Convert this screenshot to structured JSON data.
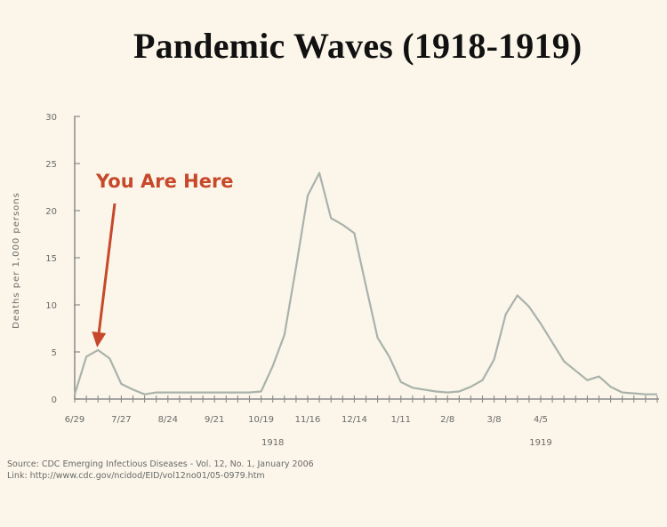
{
  "chart_data": {
    "type": "line",
    "title": "Pandemic Waves (1918-1919)",
    "ylabel": "Deaths per 1,000 persons",
    "xlabel": "",
    "ylim": [
      0,
      30
    ],
    "yticks": [
      0,
      5,
      10,
      15,
      20,
      25,
      30
    ],
    "grid": false,
    "x_tick_labels": [
      "6/29",
      "7/27",
      "8/24",
      "9/21",
      "10/19",
      "11/16",
      "12/14",
      "1/11",
      "2/8",
      "3/8",
      "4/5"
    ],
    "year_labels": [
      {
        "label": "1918",
        "week": 17
      },
      {
        "label": "1919",
        "week": 40
      }
    ],
    "series": [
      {
        "x_weeks": [
          0,
          1,
          2,
          3,
          4,
          5,
          6,
          7,
          8,
          9,
          10,
          11,
          12,
          13,
          14,
          15,
          16,
          17,
          18,
          19,
          20,
          21,
          22,
          23,
          24,
          25,
          26,
          27,
          28,
          29,
          30,
          31,
          32,
          33,
          34,
          35,
          36,
          37,
          38,
          39,
          40,
          41,
          42,
          43,
          44,
          45,
          46,
          47,
          48,
          49,
          50
        ],
        "values": [
          0.5,
          4.5,
          5.2,
          4.3,
          1.6,
          1.0,
          0.5,
          0.7,
          0.7,
          0.7,
          0.7,
          0.7,
          0.7,
          0.7,
          0.7,
          0.7,
          0.8,
          3.5,
          6.8,
          14.0,
          21.6,
          24.0,
          19.2,
          18.5,
          17.6,
          12.0,
          6.5,
          4.5,
          1.8,
          1.2,
          1.0,
          0.8,
          0.7,
          0.8,
          1.3,
          2.0,
          4.2,
          9.0,
          11.0,
          9.8,
          8.0,
          6.0,
          4.0,
          3.0,
          2.0,
          2.4,
          1.3,
          0.7,
          0.6,
          0.5,
          0.5
        ]
      }
    ],
    "line_color": "#a9b2ab",
    "axis_color": "#8a8a8a",
    "annotation": {
      "text": "You Are Here",
      "color": "#c7482a",
      "week": 2,
      "value": 5.2
    }
  },
  "source": {
    "line1": "Source: CDC Emerging Infectious Diseases - Vol. 12, No. 1, January 2006",
    "line2": "Link: http://www.cdc.gov/ncidod/EID/vol12no01/05-0979.htm"
  }
}
